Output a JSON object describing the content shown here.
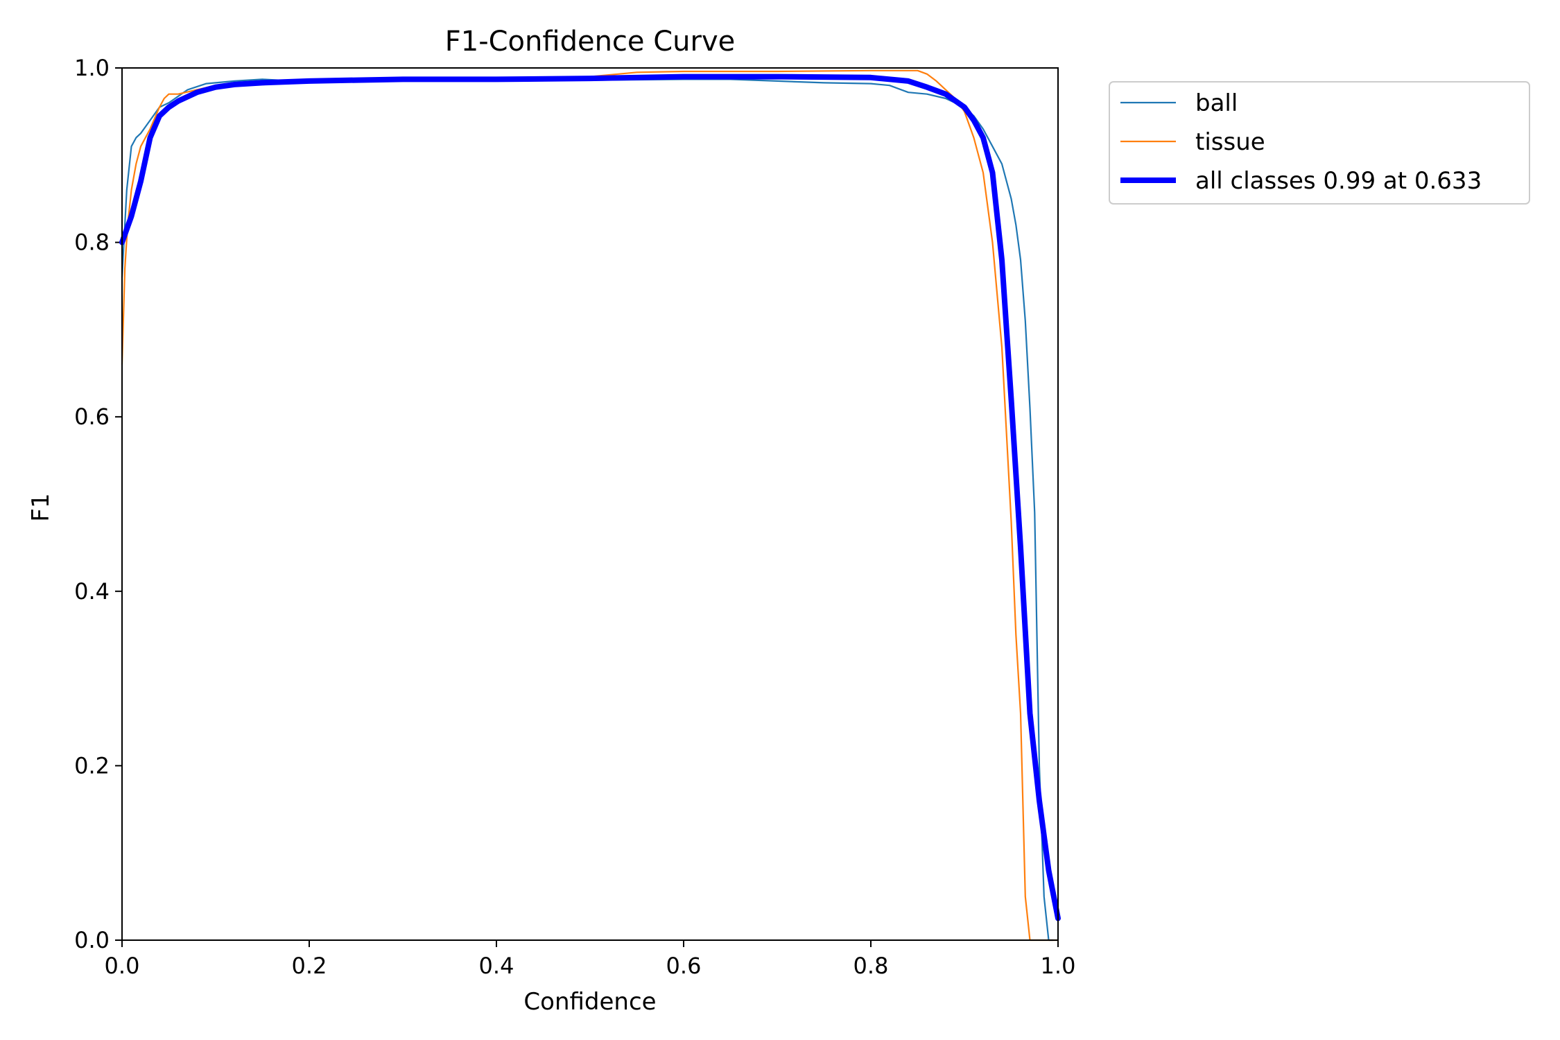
{
  "chart_data": {
    "type": "line",
    "title": "F1-Confidence Curve",
    "xlabel": "Confidence",
    "ylabel": "F1",
    "xlim": [
      0,
      1
    ],
    "ylim": [
      0,
      1
    ],
    "xticks": [
      "0.0",
      "0.2",
      "0.4",
      "0.6",
      "0.8",
      "1.0"
    ],
    "yticks": [
      "0.0",
      "0.2",
      "0.4",
      "0.6",
      "0.8",
      "1.0"
    ],
    "grid": false,
    "legend_position": "outside-top-right",
    "series": [
      {
        "name": "ball",
        "color": "#1f77b4",
        "x": [
          0.0,
          0.005,
          0.01,
          0.015,
          0.02,
          0.03,
          0.04,
          0.05,
          0.07,
          0.09,
          0.12,
          0.15,
          0.2,
          0.3,
          0.4,
          0.5,
          0.6,
          0.65,
          0.7,
          0.75,
          0.8,
          0.82,
          0.84,
          0.86,
          0.88,
          0.9,
          0.91,
          0.92,
          0.93,
          0.94,
          0.95,
          0.955,
          0.96,
          0.965,
          0.97,
          0.975,
          0.98,
          0.985,
          0.99,
          0.995
        ],
        "y": [
          0.76,
          0.86,
          0.91,
          0.92,
          0.925,
          0.94,
          0.955,
          0.96,
          0.975,
          0.982,
          0.985,
          0.987,
          0.984,
          0.986,
          0.986,
          0.986,
          0.987,
          0.987,
          0.985,
          0.983,
          0.982,
          0.98,
          0.972,
          0.97,
          0.965,
          0.955,
          0.945,
          0.93,
          0.91,
          0.89,
          0.85,
          0.82,
          0.78,
          0.71,
          0.61,
          0.49,
          0.2,
          0.05,
          0.0,
          0.0
        ]
      },
      {
        "name": "tissue",
        "color": "#ff7f0e",
        "x": [
          0.0,
          0.003,
          0.006,
          0.01,
          0.015,
          0.02,
          0.03,
          0.04,
          0.045,
          0.05,
          0.06,
          0.08,
          0.1,
          0.15,
          0.2,
          0.3,
          0.4,
          0.5,
          0.55,
          0.6,
          0.7,
          0.8,
          0.85,
          0.86,
          0.87,
          0.88,
          0.89,
          0.9,
          0.91,
          0.92,
          0.93,
          0.94,
          0.95,
          0.955,
          0.96,
          0.965,
          0.97,
          0.975,
          0.98,
          0.985,
          1.0
        ],
        "y": [
          0.66,
          0.77,
          0.82,
          0.86,
          0.89,
          0.91,
          0.93,
          0.955,
          0.965,
          0.97,
          0.97,
          0.975,
          0.98,
          0.983,
          0.985,
          0.987,
          0.988,
          0.99,
          0.995,
          0.996,
          0.996,
          0.997,
          0.997,
          0.993,
          0.985,
          0.975,
          0.965,
          0.95,
          0.92,
          0.88,
          0.8,
          0.68,
          0.48,
          0.35,
          0.26,
          0.05,
          0.0,
          0.0,
          0.0,
          0.0,
          0.0
        ]
      },
      {
        "name": "all classes 0.99 at 0.633",
        "color": "#0000ff",
        "x": [
          0.0,
          0.01,
          0.02,
          0.03,
          0.04,
          0.05,
          0.06,
          0.08,
          0.1,
          0.12,
          0.15,
          0.2,
          0.25,
          0.3,
          0.4,
          0.5,
          0.6,
          0.633,
          0.7,
          0.8,
          0.84,
          0.86,
          0.88,
          0.9,
          0.91,
          0.92,
          0.93,
          0.94,
          0.95,
          0.96,
          0.97,
          0.98,
          0.99,
          1.0
        ],
        "y": [
          0.8,
          0.83,
          0.87,
          0.92,
          0.945,
          0.955,
          0.962,
          0.972,
          0.978,
          0.981,
          0.983,
          0.985,
          0.986,
          0.987,
          0.987,
          0.988,
          0.99,
          0.99,
          0.99,
          0.989,
          0.985,
          0.978,
          0.97,
          0.955,
          0.94,
          0.92,
          0.88,
          0.78,
          0.62,
          0.45,
          0.26,
          0.16,
          0.08,
          0.025
        ]
      }
    ]
  }
}
